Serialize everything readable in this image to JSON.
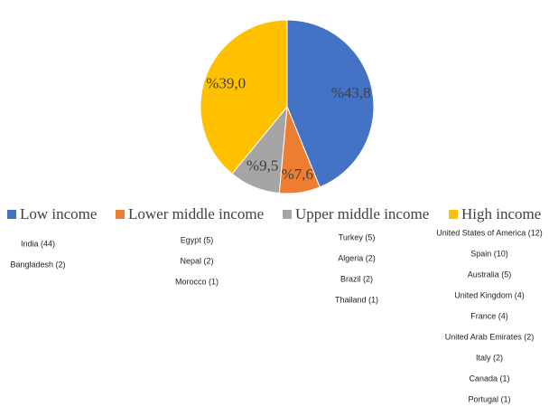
{
  "chart_data": {
    "type": "pie",
    "categories": [
      "Low income",
      "Lower middle income",
      "Upper middle income",
      "High income"
    ],
    "values": [
      43.8,
      7.6,
      9.5,
      39.0
    ],
    "value_labels": [
      "%43,8",
      "%7,6",
      "%9,5",
      "%39,0"
    ],
    "colors": [
      "#4472c4",
      "#ed7d31",
      "#a5a5a5",
      "#ffc000"
    ],
    "countries": [
      [
        "India (44)",
        "Bangladesh (2)"
      ],
      [
        "Egypt (5)",
        "Nepal (2)",
        "Morocco (1)"
      ],
      [
        "Turkey (5)",
        "Algeria (2)",
        "Brazil (2)",
        "Thailand (1)"
      ],
      [
        "United States of America (12)",
        "Spain (10)",
        "Australia (5)",
        "United Kingdom (4)",
        "France (4)",
        "United Arab Emirates (2)",
        "Italy (2)",
        "Canada (1)",
        "Portugal (1)"
      ]
    ]
  }
}
